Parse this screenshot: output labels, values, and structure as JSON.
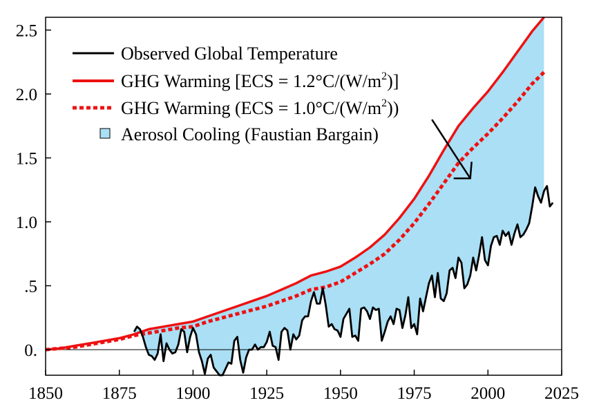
{
  "chart_data": {
    "type": "line",
    "title": "",
    "xlabel": "",
    "ylabel": "",
    "xlim": [
      1850,
      2025
    ],
    "ylim": [
      -0.2,
      2.6
    ],
    "x_ticks": [
      1850,
      1875,
      1900,
      1925,
      1950,
      1975,
      2000,
      2025
    ],
    "x_tick_labels": [
      "1850",
      "1875",
      "1900",
      "1925",
      "1950",
      "1975",
      "2000",
      "2025"
    ],
    "y_ticks": [
      0.0,
      0.5,
      1.0,
      1.5,
      2.0,
      2.5
    ],
    "y_tick_labels": [
      "0.",
      ".5",
      "1.0",
      "1.5",
      "2.0",
      "2.5"
    ],
    "grid": false,
    "legend_position": "top-left",
    "legend": {
      "observed": "Observed Global Temperature",
      "ghg12_prefix": "GHG Warming [ECS = 1.2°C/(W/m",
      "ghg12_sup": "2",
      "ghg12_suffix": ")]",
      "ghg10_prefix": "GHG Warming (ECS = 1.0°C/(W/m",
      "ghg10_sup": "2",
      "ghg10_suffix": "))",
      "aerosol": "Aerosol Cooling (Faustian Bargain)"
    },
    "colors": {
      "observed": "#000000",
      "ghg": "#ee1111",
      "aerosol_fill": "#aadff5"
    },
    "series": [
      {
        "key": "ghg12",
        "style": "solid",
        "x": [
          1850,
          1855,
          1860,
          1865,
          1870,
          1875,
          1880,
          1885,
          1890,
          1895,
          1900,
          1905,
          1910,
          1915,
          1920,
          1925,
          1930,
          1935,
          1940,
          1945,
          1950,
          1955,
          1960,
          1965,
          1970,
          1975,
          1980,
          1985,
          1990,
          1995,
          2000,
          2005,
          2010,
          2015,
          2019
        ],
        "values": [
          0.0,
          0.01,
          0.03,
          0.05,
          0.07,
          0.09,
          0.12,
          0.16,
          0.18,
          0.2,
          0.22,
          0.26,
          0.3,
          0.34,
          0.38,
          0.42,
          0.47,
          0.52,
          0.58,
          0.61,
          0.65,
          0.72,
          0.8,
          0.9,
          1.03,
          1.18,
          1.36,
          1.56,
          1.75,
          1.89,
          2.02,
          2.17,
          2.33,
          2.49,
          2.6
        ]
      },
      {
        "key": "ghg10",
        "style": "dotted",
        "x": [
          1850,
          1855,
          1860,
          1865,
          1870,
          1875,
          1880,
          1885,
          1890,
          1895,
          1900,
          1905,
          1910,
          1915,
          1920,
          1925,
          1930,
          1935,
          1940,
          1945,
          1950,
          1955,
          1960,
          1965,
          1970,
          1975,
          1980,
          1985,
          1990,
          1995,
          2000,
          2005,
          2010,
          2015,
          2019
        ],
        "values": [
          0.0,
          0.01,
          0.02,
          0.04,
          0.06,
          0.08,
          0.11,
          0.13,
          0.15,
          0.17,
          0.18,
          0.22,
          0.25,
          0.28,
          0.31,
          0.34,
          0.38,
          0.42,
          0.47,
          0.49,
          0.53,
          0.6,
          0.67,
          0.75,
          0.86,
          0.99,
          1.14,
          1.3,
          1.46,
          1.58,
          1.69,
          1.81,
          1.94,
          2.08,
          2.17
        ]
      },
      {
        "key": "observed",
        "style": "solid",
        "x": [
          1880,
          1881,
          1882,
          1883,
          1884,
          1885,
          1886,
          1887,
          1888,
          1889,
          1890,
          1891,
          1892,
          1893,
          1894,
          1895,
          1896,
          1897,
          1898,
          1899,
          1900,
          1901,
          1902,
          1903,
          1904,
          1905,
          1906,
          1907,
          1908,
          1909,
          1910,
          1911,
          1912,
          1913,
          1914,
          1915,
          1916,
          1917,
          1918,
          1919,
          1920,
          1921,
          1922,
          1923,
          1924,
          1925,
          1926,
          1927,
          1928,
          1929,
          1930,
          1931,
          1932,
          1933,
          1934,
          1935,
          1936,
          1937,
          1938,
          1939,
          1940,
          1941,
          1942,
          1943,
          1944,
          1945,
          1946,
          1947,
          1948,
          1949,
          1950,
          1951,
          1952,
          1953,
          1954,
          1955,
          1956,
          1957,
          1958,
          1959,
          1960,
          1961,
          1962,
          1963,
          1964,
          1965,
          1966,
          1967,
          1968,
          1969,
          1970,
          1971,
          1972,
          1973,
          1974,
          1975,
          1976,
          1977,
          1978,
          1979,
          1980,
          1981,
          1982,
          1983,
          1984,
          1985,
          1986,
          1987,
          1988,
          1989,
          1990,
          1991,
          1992,
          1993,
          1994,
          1995,
          1996,
          1997,
          1998,
          1999,
          2000,
          2001,
          2002,
          2003,
          2004,
          2005,
          2006,
          2007,
          2008,
          2009,
          2010,
          2011,
          2012,
          2013,
          2014,
          2015,
          2016,
          2017,
          2018,
          2019,
          2020,
          2021,
          2022
        ],
        "values": [
          0.14,
          0.18,
          0.16,
          0.1,
          0.02,
          -0.04,
          -0.05,
          -0.08,
          -0.03,
          0.12,
          -0.09,
          0.05,
          0.0,
          -0.03,
          -0.02,
          0.04,
          0.16,
          0.14,
          -0.02,
          0.1,
          0.17,
          0.12,
          -0.02,
          -0.09,
          -0.19,
          -0.07,
          -0.04,
          -0.14,
          -0.17,
          -0.2,
          -0.2,
          -0.15,
          -0.1,
          -0.11,
          0.07,
          0.1,
          -0.08,
          -0.18,
          -0.06,
          0.0,
          0.0,
          0.04,
          0.0,
          0.02,
          0.02,
          0.06,
          0.14,
          0.03,
          0.02,
          -0.08,
          0.14,
          0.17,
          0.15,
          0.0,
          0.12,
          0.08,
          0.11,
          0.23,
          0.26,
          0.26,
          0.38,
          0.45,
          0.36,
          0.36,
          0.48,
          0.35,
          0.18,
          0.2,
          0.16,
          0.15,
          0.1,
          0.24,
          0.28,
          0.32,
          0.1,
          0.11,
          0.07,
          0.32,
          0.33,
          0.3,
          0.24,
          0.33,
          0.31,
          0.32,
          0.07,
          0.14,
          0.22,
          0.26,
          0.2,
          0.32,
          0.31,
          0.17,
          0.27,
          0.41,
          0.17,
          0.2,
          0.12,
          0.4,
          0.3,
          0.41,
          0.52,
          0.58,
          0.41,
          0.6,
          0.4,
          0.38,
          0.44,
          0.62,
          0.64,
          0.56,
          0.72,
          0.68,
          0.48,
          0.51,
          0.58,
          0.72,
          0.62,
          0.74,
          0.88,
          0.7,
          0.66,
          0.81,
          0.88,
          0.89,
          0.82,
          0.93,
          0.89,
          0.92,
          0.82,
          0.91,
          0.98,
          0.88,
          0.9,
          0.94,
          0.99,
          1.12,
          1.27,
          1.2,
          1.15,
          1.24,
          1.28,
          1.12,
          1.15
        ]
      }
    ],
    "annotation": {
      "type": "arrow",
      "from": [
        1981,
        1.8
      ],
      "to": [
        1994,
        1.34
      ]
    }
  }
}
